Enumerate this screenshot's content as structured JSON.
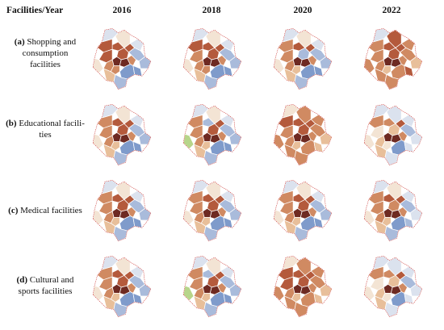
{
  "header": {
    "corner_label": "Facilities/Year",
    "years": [
      "2016",
      "2018",
      "2020",
      "2022"
    ]
  },
  "rows": [
    {
      "letter": "(a)",
      "name_line1": "Shopping and",
      "name_line2": "consumption",
      "name_line3": "facilities"
    },
    {
      "letter": "(b)",
      "name_line1": "Educational facili-",
      "name_line2": "ties",
      "name_line3": ""
    },
    {
      "letter": "(c)",
      "name_line1": "Medical facilities",
      "name_line2": "",
      "name_line3": ""
    },
    {
      "letter": "(d)",
      "name_line1": "Cultural and",
      "name_line2": "sports facilities",
      "name_line3": ""
    }
  ],
  "palette": {
    "very_high": "#6e2a22",
    "high": "#b45a3c",
    "mid_high": "#d08a62",
    "mid": "#e8bf9a",
    "neutral": "#f3e4d4",
    "low_light": "#dbe2ee",
    "low": "#a9bbdb",
    "very_low": "#7f9bcb",
    "green": "#b7d58a",
    "border": "#ffffff",
    "outline": "#c9302c"
  },
  "maps": [
    [
      "b",
      "b",
      "a",
      "b",
      "a",
      "b",
      "b",
      "c",
      "c",
      "e",
      "c",
      "f",
      "g",
      "g",
      "h",
      "h",
      "e",
      "f",
      "d",
      "g"
    ],
    [
      "b",
      "b",
      "a",
      "b",
      "a",
      "b",
      "c",
      "c",
      "c",
      "e",
      "c",
      "f",
      "g",
      "g",
      "h",
      "h",
      "e",
      "f",
      "d",
      "g"
    ],
    [
      "g",
      "b",
      "a",
      "b",
      "a",
      "c",
      "c",
      "c",
      "d",
      "e",
      "c",
      "f",
      "g",
      "g",
      "h",
      "h",
      "e",
      "f",
      "d",
      "g"
    ],
    [
      "b",
      "b",
      "a",
      "b",
      "a",
      "c",
      "c",
      "c",
      "d",
      "b",
      "c",
      "c",
      "c",
      "d",
      "c",
      "b",
      "c",
      "f",
      "c",
      "c"
    ],
    [
      "b",
      "b",
      "a",
      "b",
      "a",
      "c",
      "c",
      "c",
      "d",
      "e",
      "c",
      "f",
      "g",
      "g",
      "h",
      "h",
      "e",
      "f",
      "d",
      "g"
    ],
    [
      "b",
      "g",
      "a",
      "b",
      "a",
      "c",
      "c",
      "c",
      "d",
      "e",
      "c",
      "f",
      "g",
      "g",
      "h",
      "h",
      "i",
      "f",
      "d",
      "g"
    ],
    [
      "b",
      "b",
      "a",
      "b",
      "a",
      "b",
      "c",
      "c",
      "d",
      "c",
      "c",
      "c",
      "c",
      "d",
      "c",
      "d",
      "c",
      "e",
      "c",
      "c"
    ],
    [
      "d",
      "c",
      "a",
      "b",
      "a",
      "c",
      "e",
      "d",
      "e",
      "f",
      "c",
      "f",
      "g",
      "f",
      "h",
      "f",
      "e",
      "f",
      "d",
      "f"
    ],
    [
      "b",
      "b",
      "a",
      "b",
      "a",
      "c",
      "c",
      "c",
      "d",
      "e",
      "c",
      "f",
      "g",
      "g",
      "h",
      "h",
      "e",
      "f",
      "d",
      "g"
    ],
    [
      "b",
      "b",
      "a",
      "b",
      "a",
      "c",
      "c",
      "c",
      "d",
      "e",
      "c",
      "f",
      "g",
      "g",
      "h",
      "h",
      "e",
      "f",
      "d",
      "g"
    ],
    [
      "b",
      "b",
      "a",
      "b",
      "a",
      "c",
      "c",
      "c",
      "d",
      "e",
      "c",
      "f",
      "g",
      "g",
      "h",
      "h",
      "e",
      "f",
      "d",
      "g"
    ],
    [
      "c",
      "b",
      "a",
      "b",
      "a",
      "c",
      "c",
      "c",
      "d",
      "e",
      "c",
      "f",
      "g",
      "f",
      "h",
      "g",
      "e",
      "f",
      "d",
      "g"
    ],
    [
      "b",
      "b",
      "a",
      "b",
      "a",
      "c",
      "c",
      "c",
      "d",
      "e",
      "c",
      "f",
      "g",
      "g",
      "h",
      "h",
      "e",
      "f",
      "d",
      "g"
    ],
    [
      "b",
      "g",
      "a",
      "b",
      "a",
      "c",
      "c",
      "c",
      "d",
      "e",
      "c",
      "f",
      "g",
      "g",
      "h",
      "h",
      "i",
      "f",
      "d",
      "g"
    ],
    [
      "b",
      "b",
      "a",
      "b",
      "a",
      "b",
      "b",
      "c",
      "d",
      "c",
      "c",
      "c",
      "c",
      "d",
      "c",
      "d",
      "c",
      "e",
      "c",
      "c"
    ],
    [
      "d",
      "c",
      "a",
      "b",
      "a",
      "c",
      "e",
      "d",
      "e",
      "f",
      "c",
      "f",
      "g",
      "f",
      "h",
      "f",
      "e",
      "f",
      "d",
      "f"
    ]
  ]
}
